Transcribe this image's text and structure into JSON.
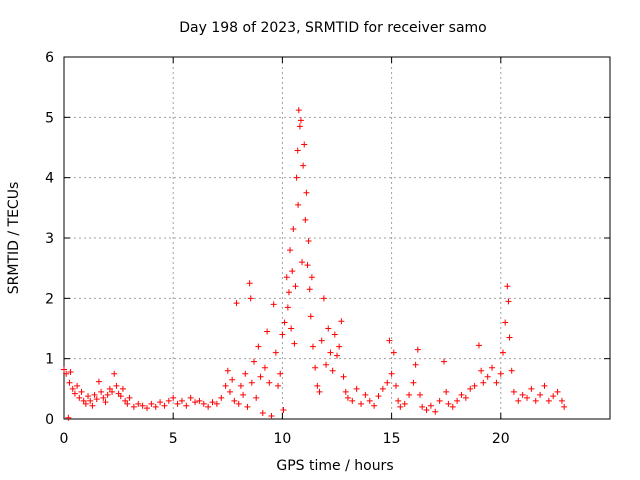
{
  "chart_data": {
    "type": "scatter",
    "title": "Day 198 of 2023, SRMTID for receiver samo",
    "xlabel": "GPS time / hours",
    "ylabel": "SRMTID / TECUs",
    "xlim": [
      0,
      25
    ],
    "ylim": [
      0,
      6
    ],
    "xticks": [
      0,
      5,
      10,
      15,
      20
    ],
    "yticks": [
      0,
      1,
      2,
      3,
      4,
      5,
      6
    ],
    "grid": true,
    "marker": "+",
    "color": "#ff0000",
    "series": [
      {
        "name": "SRMTID",
        "points": [
          [
            0.0,
            0.82
          ],
          [
            0.1,
            0.75
          ],
          [
            0.2,
            0.02
          ],
          [
            0.25,
            0.6
          ],
          [
            0.3,
            0.78
          ],
          [
            0.4,
            0.5
          ],
          [
            0.5,
            0.42
          ],
          [
            0.6,
            0.55
          ],
          [
            0.7,
            0.35
          ],
          [
            0.8,
            0.45
          ],
          [
            0.9,
            0.3
          ],
          [
            1.0,
            0.25
          ],
          [
            1.1,
            0.38
          ],
          [
            1.2,
            0.3
          ],
          [
            1.3,
            0.22
          ],
          [
            1.4,
            0.4
          ],
          [
            1.5,
            0.33
          ],
          [
            1.6,
            0.62
          ],
          [
            1.7,
            0.45
          ],
          [
            1.8,
            0.35
          ],
          [
            1.9,
            0.28
          ],
          [
            2.0,
            0.4
          ],
          [
            2.1,
            0.5
          ],
          [
            2.2,
            0.45
          ],
          [
            2.3,
            0.75
          ],
          [
            2.4,
            0.55
          ],
          [
            2.5,
            0.42
          ],
          [
            2.6,
            0.38
          ],
          [
            2.7,
            0.5
          ],
          [
            2.8,
            0.3
          ],
          [
            2.9,
            0.25
          ],
          [
            3.0,
            0.35
          ],
          [
            3.2,
            0.2
          ],
          [
            3.4,
            0.25
          ],
          [
            3.6,
            0.22
          ],
          [
            3.8,
            0.18
          ],
          [
            4.0,
            0.25
          ],
          [
            4.2,
            0.2
          ],
          [
            4.4,
            0.28
          ],
          [
            4.6,
            0.22
          ],
          [
            4.8,
            0.3
          ],
          [
            5.0,
            0.35
          ],
          [
            5.2,
            0.25
          ],
          [
            5.4,
            0.3
          ],
          [
            5.6,
            0.22
          ],
          [
            5.8,
            0.35
          ],
          [
            6.0,
            0.28
          ],
          [
            6.2,
            0.3
          ],
          [
            6.4,
            0.25
          ],
          [
            6.6,
            0.2
          ],
          [
            6.8,
            0.28
          ],
          [
            7.0,
            0.25
          ],
          [
            7.2,
            0.35
          ],
          [
            7.4,
            0.55
          ],
          [
            7.5,
            0.8
          ],
          [
            7.6,
            0.45
          ],
          [
            7.7,
            0.65
          ],
          [
            7.8,
            0.3
          ],
          [
            7.9,
            1.92
          ],
          [
            8.0,
            0.25
          ],
          [
            8.1,
            0.55
          ],
          [
            8.2,
            0.4
          ],
          [
            8.3,
            0.75
          ],
          [
            8.4,
            0.2
          ],
          [
            8.5,
            2.25
          ],
          [
            8.55,
            2.0
          ],
          [
            8.6,
            0.6
          ],
          [
            8.7,
            0.95
          ],
          [
            8.8,
            0.35
          ],
          [
            8.9,
            1.2
          ],
          [
            9.0,
            0.7
          ],
          [
            9.1,
            0.1
          ],
          [
            9.2,
            0.85
          ],
          [
            9.3,
            1.45
          ],
          [
            9.4,
            0.6
          ],
          [
            9.5,
            0.05
          ],
          [
            9.6,
            1.9
          ],
          [
            9.7,
            1.1
          ],
          [
            9.8,
            0.55
          ],
          [
            9.9,
            0.75
          ],
          [
            10.0,
            1.4
          ],
          [
            10.05,
            0.15
          ],
          [
            10.1,
            1.6
          ],
          [
            10.2,
            2.35
          ],
          [
            10.25,
            1.85
          ],
          [
            10.3,
            2.1
          ],
          [
            10.35,
            2.8
          ],
          [
            10.4,
            1.5
          ],
          [
            10.45,
            2.45
          ],
          [
            10.5,
            3.15
          ],
          [
            10.55,
            1.25
          ],
          [
            10.6,
            2.2
          ],
          [
            10.65,
            4.0
          ],
          [
            10.7,
            4.45
          ],
          [
            10.72,
            3.55
          ],
          [
            10.75,
            5.12
          ],
          [
            10.8,
            4.85
          ],
          [
            10.85,
            4.95
          ],
          [
            10.9,
            2.6
          ],
          [
            10.95,
            4.2
          ],
          [
            11.0,
            4.55
          ],
          [
            11.05,
            3.3
          ],
          [
            11.1,
            3.75
          ],
          [
            11.15,
            2.55
          ],
          [
            11.2,
            2.95
          ],
          [
            11.25,
            2.15
          ],
          [
            11.3,
            1.7
          ],
          [
            11.35,
            2.35
          ],
          [
            11.4,
            1.2
          ],
          [
            11.5,
            0.85
          ],
          [
            11.6,
            0.55
          ],
          [
            11.7,
            0.45
          ],
          [
            11.8,
            1.3
          ],
          [
            11.9,
            2.0
          ],
          [
            12.0,
            0.9
          ],
          [
            12.1,
            1.5
          ],
          [
            12.2,
            1.1
          ],
          [
            12.3,
            0.8
          ],
          [
            12.4,
            1.4
          ],
          [
            12.5,
            1.05
          ],
          [
            12.6,
            1.2
          ],
          [
            12.7,
            1.62
          ],
          [
            12.8,
            0.7
          ],
          [
            12.9,
            0.45
          ],
          [
            13.0,
            0.35
          ],
          [
            13.2,
            0.3
          ],
          [
            13.4,
            0.5
          ],
          [
            13.6,
            0.25
          ],
          [
            13.8,
            0.4
          ],
          [
            14.0,
            0.3
          ],
          [
            14.2,
            0.22
          ],
          [
            14.4,
            0.38
          ],
          [
            14.6,
            0.5
          ],
          [
            14.8,
            0.6
          ],
          [
            14.9,
            1.3
          ],
          [
            15.0,
            0.75
          ],
          [
            15.1,
            1.1
          ],
          [
            15.2,
            0.55
          ],
          [
            15.3,
            0.3
          ],
          [
            15.4,
            0.2
          ],
          [
            15.6,
            0.25
          ],
          [
            15.8,
            0.4
          ],
          [
            16.0,
            0.6
          ],
          [
            16.1,
            0.9
          ],
          [
            16.2,
            1.15
          ],
          [
            16.3,
            0.4
          ],
          [
            16.4,
            0.2
          ],
          [
            16.6,
            0.15
          ],
          [
            16.8,
            0.22
          ],
          [
            17.0,
            0.12
          ],
          [
            17.2,
            0.3
          ],
          [
            17.4,
            0.95
          ],
          [
            17.5,
            0.45
          ],
          [
            17.6,
            0.25
          ],
          [
            17.8,
            0.2
          ],
          [
            18.0,
            0.3
          ],
          [
            18.2,
            0.4
          ],
          [
            18.4,
            0.35
          ],
          [
            18.6,
            0.5
          ],
          [
            18.8,
            0.55
          ],
          [
            19.0,
            1.22
          ],
          [
            19.1,
            0.8
          ],
          [
            19.2,
            0.6
          ],
          [
            19.4,
            0.7
          ],
          [
            19.6,
            0.85
          ],
          [
            19.8,
            0.6
          ],
          [
            20.0,
            0.75
          ],
          [
            20.1,
            1.1
          ],
          [
            20.2,
            1.6
          ],
          [
            20.3,
            2.2
          ],
          [
            20.35,
            1.95
          ],
          [
            20.4,
            1.35
          ],
          [
            20.5,
            0.8
          ],
          [
            20.6,
            0.45
          ],
          [
            20.8,
            0.3
          ],
          [
            21.0,
            0.4
          ],
          [
            21.2,
            0.35
          ],
          [
            21.4,
            0.5
          ],
          [
            21.6,
            0.3
          ],
          [
            21.8,
            0.4
          ],
          [
            22.0,
            0.55
          ],
          [
            22.2,
            0.3
          ],
          [
            22.4,
            0.38
          ],
          [
            22.6,
            0.45
          ],
          [
            22.8,
            0.3
          ],
          [
            22.9,
            0.2
          ]
        ]
      }
    ]
  }
}
